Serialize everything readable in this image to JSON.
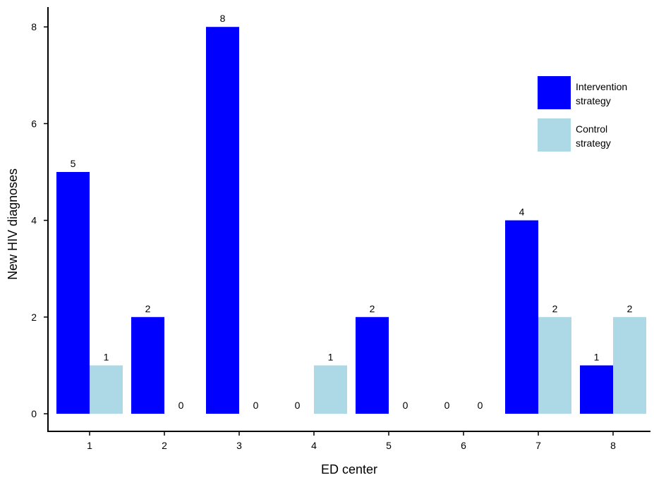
{
  "chart_data": {
    "type": "bar",
    "categories": [
      "1",
      "2",
      "3",
      "4",
      "5",
      "6",
      "7",
      "8"
    ],
    "series": [
      {
        "name": "Intervention strategy",
        "legend_lines": [
          "Intervention",
          "strategy"
        ],
        "color": "#0000FF",
        "values": [
          5,
          2,
          8,
          0,
          2,
          0,
          4,
          1
        ]
      },
      {
        "name": "Control strategy",
        "legend_lines": [
          "Control",
          "strategy"
        ],
        "color": "#ADD8E6",
        "values": [
          1,
          0,
          0,
          1,
          0,
          0,
          2,
          2
        ]
      }
    ],
    "xlabel": "ED center",
    "ylabel": "New HIV diagnoses",
    "ylim": [
      0,
      8.5
    ],
    "yticks": [
      0,
      2,
      4,
      6,
      8
    ],
    "grid": false,
    "legend_position": "top-right",
    "data_labels": true
  }
}
